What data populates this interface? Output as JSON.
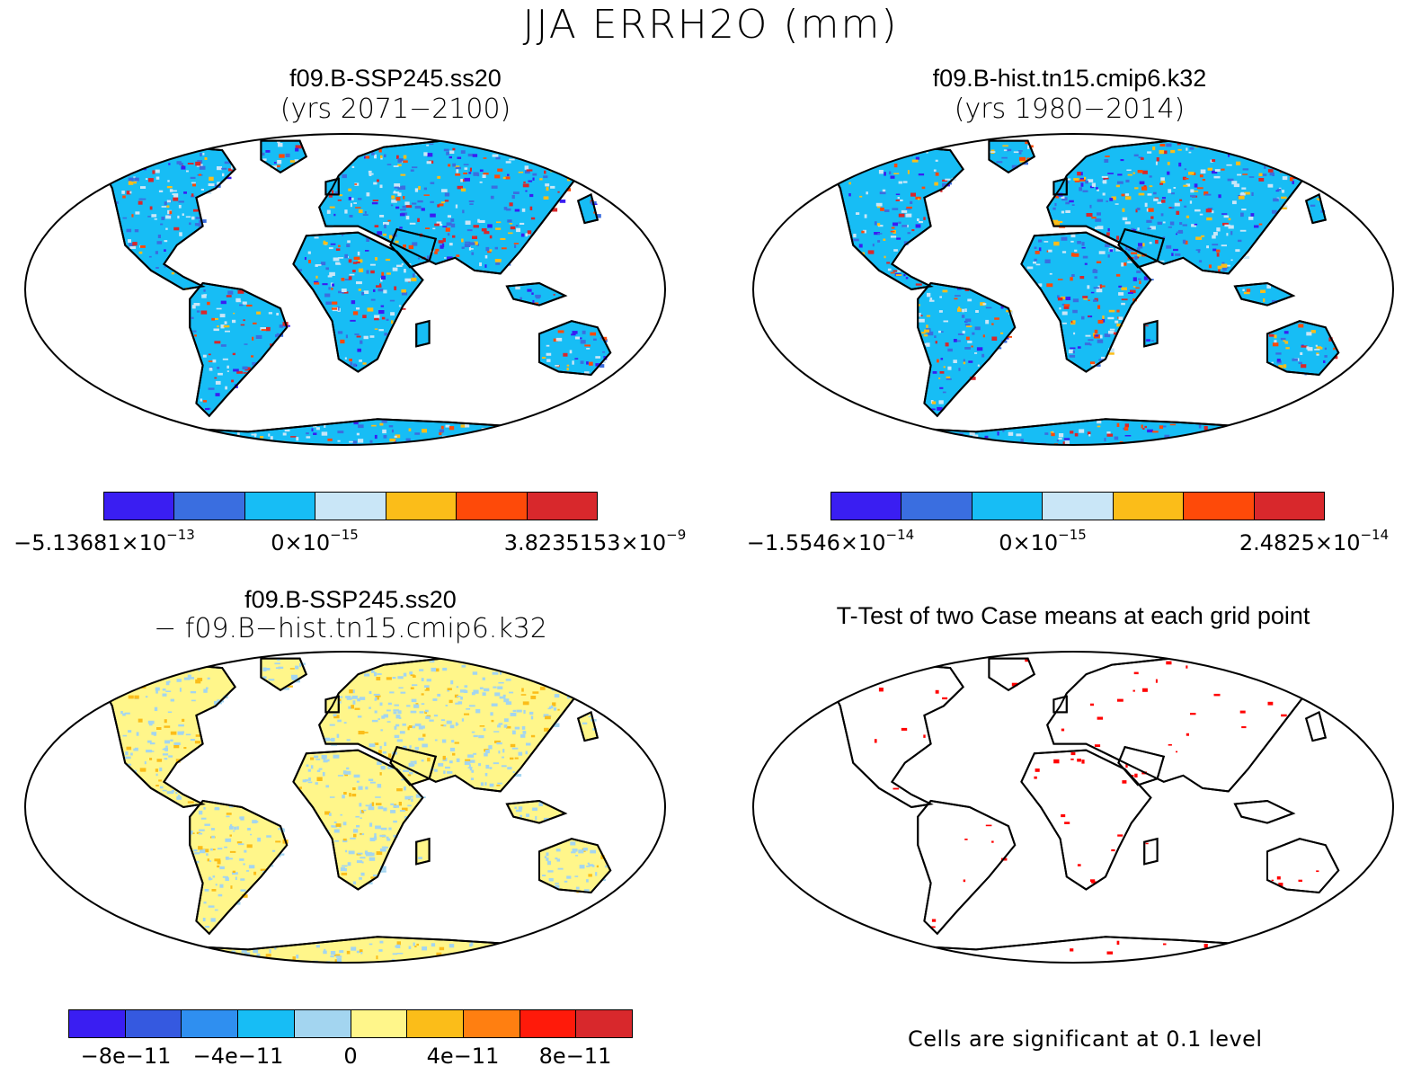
{
  "title": "JJA ERRH2O (mm)",
  "panels": [
    {
      "id": "case1",
      "title": "f09.B-SSP245.ss20",
      "subtitle": "(yrs 2071−2100)",
      "map_fill": "scatter-blue-red",
      "colorbar": {
        "colors": [
          "#3a1ef2",
          "#3a6ee0",
          "#17bdf5",
          "#c9e6f7",
          "#fbbd19",
          "#fe4a09",
          "#d8282c"
        ],
        "labels": [
          {
            "mant": "−5.13681×10",
            "exp": "−13"
          },
          {
            "mant": "0×10",
            "exp": "−15"
          },
          {
            "mant": "3.8235153×10",
            "exp": "−9"
          }
        ]
      }
    },
    {
      "id": "case2",
      "title": "f09.B-hist.tn15.cmip6.k32",
      "subtitle": "(yrs 1980−2014)",
      "map_fill": "scatter-blue-red",
      "colorbar": {
        "colors": [
          "#3a1ef2",
          "#3a6ee0",
          "#17bdf5",
          "#c9e6f7",
          "#fbbd19",
          "#fe4a09",
          "#d8282c"
        ],
        "labels": [
          {
            "mant": "−1.5546×10",
            "exp": "−14"
          },
          {
            "mant": "0×10",
            "exp": "−15"
          },
          {
            "mant": "2.4825×10",
            "exp": "−14"
          }
        ]
      }
    },
    {
      "id": "difference",
      "title": "f09.B-SSP245.ss20",
      "subtitle": "−  f09.B−hist.tn15.cmip6.k32",
      "map_fill": "scatter-yellow-lightblue",
      "colorbar": {
        "colors": [
          "#3a1ef2",
          "#3559e0",
          "#2f8ff0",
          "#17bdf5",
          "#a3d5f0",
          "#fff68a",
          "#fbbd19",
          "#ff7f11",
          "#ff1a0a",
          "#d8282c"
        ],
        "labels": [
          {
            "mant": "−8e−11",
            "exp": ""
          },
          {
            "mant": "−4e−11",
            "exp": ""
          },
          {
            "mant": "0",
            "exp": ""
          },
          {
            "mant": "4e−11",
            "exp": ""
          },
          {
            "mant": "8e−11",
            "exp": ""
          }
        ]
      }
    },
    {
      "id": "ttest",
      "title": "T-Test of two Case means at each grid point",
      "map_fill": "sparse-red",
      "footnote": "Cells are significant at 0.1 level"
    }
  ]
}
